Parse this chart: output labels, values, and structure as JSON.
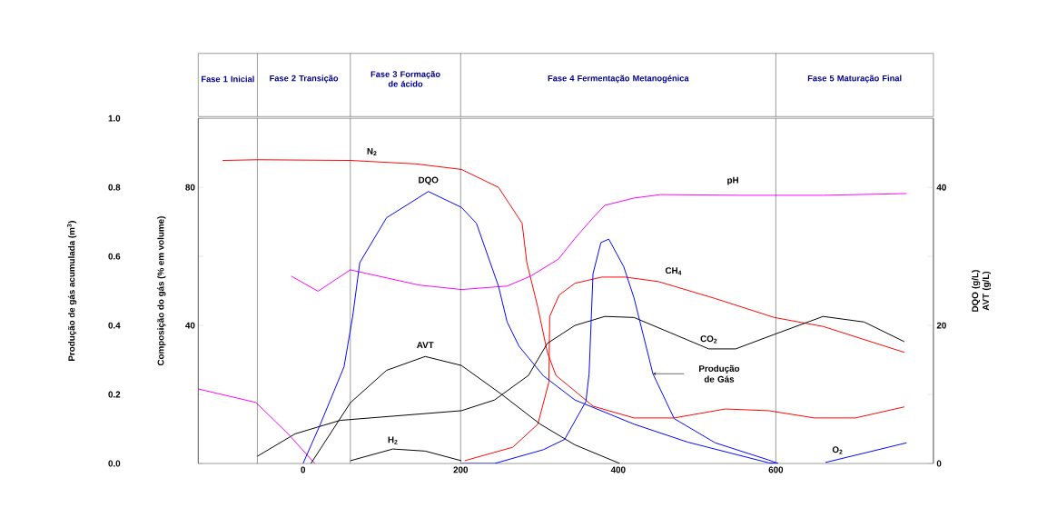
{
  "chart_data": {
    "type": "line",
    "xlim": [
      -133,
      800
    ],
    "xticks": [
      0,
      200,
      400,
      600
    ],
    "ylim": [
      0,
      100
    ],
    "yticks": [
      40,
      80
    ],
    "ylabel": "Composição do gás (% em volume)",
    "y2lim": [
      0,
      50
    ],
    "y2ticks": [
      0,
      {
        "value": 10,
        "label": null
      },
      20,
      {
        "value": 30,
        "label": null
      },
      40
    ],
    "y2label": "DQO (g/L) AVT (g/L)",
    "y3lim": [
      0,
      1.0
    ],
    "y3ticks": [
      {
        "value": 0,
        "label": "0.0"
      },
      {
        "value": 0.2,
        "label": "0.2"
      },
      {
        "value": 0.4,
        "label": "0.4"
      },
      {
        "value": 0.6,
        "label": "0.6"
      },
      {
        "value": 0.8,
        "label": "0.8"
      },
      {
        "value": 1.0,
        "label": "1.0"
      }
    ],
    "y3label": "Produção de gás acumulada (m$^{3}$)",
    "marker": "none",
    "line_style": "solid",
    "ref_lines": [
      {
        "axis": "x",
        "value": -58
      },
      {
        "axis": "x",
        "value": 60
      },
      {
        "axis": "x",
        "value": 200
      },
      {
        "axis": "x",
        "value": 600
      }
    ],
    "annotations": [
      "Fase 1 Inicial",
      "Fase 2 Transição",
      "Fase 3 Formação de ácido",
      "Fase 4 Fermentação Metanogénica",
      "Fase 5 Maturação Final"
    ],
    "series": [
      {
        "name": "N$_{2}$",
        "color": "#ff0000",
        "x": [
          -102,
          -58,
          60,
          143,
          201,
          248,
          278,
          284,
          298,
          310,
          321,
          345,
          368,
          420,
          471,
          536,
          591,
          649,
          701,
          763
        ],
        "values": [
          87.8,
          88,
          87.8,
          86.8,
          85.2,
          80.0,
          69.6,
          58.2,
          45.2,
          32.2,
          25.5,
          21.0,
          16.6,
          13.2,
          13.2,
          15.8,
          15.3,
          13.2,
          13.2,
          16.4
        ]
      },
      {
        "name": "CH$_{4}$",
        "color": "#ff0000",
        "x": [
          205,
          266,
          298,
          312,
          313,
          325,
          345,
          379,
          409,
          451,
          523,
          598,
          660,
          763
        ],
        "values": [
          0.8,
          4.7,
          11.4,
          23.6,
          42.6,
          48.8,
          52.2,
          54.0,
          54.0,
          52.7,
          47.8,
          42.3,
          39.7,
          32.2
        ]
      },
      {
        "name": "CO$_{2}$",
        "color": "#000000",
        "x": [
          -58,
          -10,
          47,
          201,
          243,
          286,
          310,
          345,
          383,
          420,
          515,
          549,
          598,
          660,
          712,
          763
        ],
        "values": [
          2.1,
          8.6,
          12.5,
          15.3,
          18.4,
          25.5,
          34.8,
          40.0,
          42.6,
          42.3,
          33.2,
          33.2,
          37.4,
          42.6,
          41.0,
          35.3
        ]
      },
      {
        "name": "H$_{2}$",
        "color": "#000000",
        "x": [
          60,
          114,
          155,
          201
        ],
        "values": [
          0.8,
          4.2,
          3.6,
          0.8
        ]
      },
      {
        "name": "O$_{2}$",
        "color": "#0000ff",
        "x": [
          663,
          766
        ],
        "values": [
          0.3,
          6.0
        ]
      },
      {
        "name": "pH",
        "color": "#ff00ff",
        "x": [
          -133,
          -60,
          -19,
          15,
          0,
          -15,
          19,
          60,
          147,
          201,
          259,
          289,
          324,
          345,
          368,
          383,
          420,
          454,
          557,
          660,
          766
        ],
        "values": [
          21.6,
          17.7,
          8.6,
          0,
          null,
          54.3,
          49.9,
          56.1,
          51.7,
          50.4,
          51.4,
          54.3,
          59.2,
          65.2,
          71.2,
          74.8,
          76.9,
          77.9,
          77.7,
          77.7,
          78.2
        ]
      },
      {
        "name": "DQO",
        "color": "#0000ff",
        "axis": "y2",
        "x": [
          0,
          22,
          52,
          63,
          72,
          106,
          159,
          201,
          220,
          248,
          259,
          274,
          305,
          345,
          420,
          488,
          591,
          603
        ],
        "values": [
          0,
          5.7,
          14.0,
          21.3,
          29.1,
          35.6,
          39.4,
          37.1,
          34.8,
          25.7,
          20.5,
          17.0,
          12.7,
          9.2,
          5.7,
          3.1,
          0.1,
          0
        ]
      },
      {
        "name": "AVT",
        "color": "#000000",
        "axis": "y2",
        "x": [
          10,
          60,
          106,
          155,
          201,
          251,
          301,
          345,
          402
        ],
        "values": [
          0,
          8.8,
          13.5,
          15.5,
          14.2,
          10.1,
          5.7,
          2.7,
          0
        ]
      },
      {
        "name": "Produção de Gás",
        "color": "#0000ff",
        "axis": "y3",
        "x": [
          201,
          243,
          305,
          332,
          359,
          363,
          368,
          378,
          388,
          407,
          420,
          444,
          471,
          523,
          591,
          603
        ],
        "values": [
          0.0,
          0.0,
          0.04,
          0.07,
          0.18,
          0.26,
          0.55,
          0.64,
          0.65,
          0.57,
          0.48,
          0.26,
          0.13,
          0.06,
          0.01,
          0.0
        ]
      }
    ]
  }
}
